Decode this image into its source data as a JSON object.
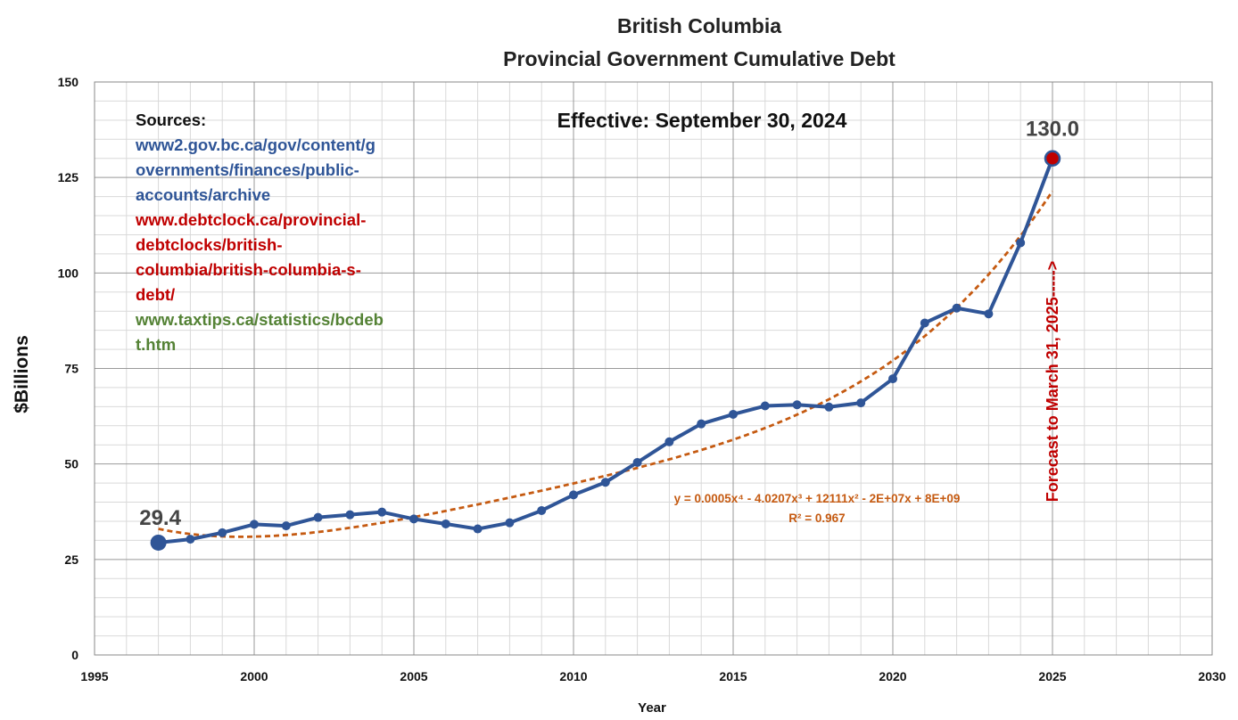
{
  "chart_data": {
    "type": "line",
    "title_line1": "British Columbia",
    "title_line2": "Provincial Government Cumulative Debt",
    "xlabel": "Year",
    "ylabel": "$Billions",
    "xlim": [
      1995,
      2030
    ],
    "ylim": [
      0,
      150
    ],
    "x_ticks": [
      "1995",
      "2000",
      "2005",
      "2010",
      "2015",
      "2020",
      "2025",
      "2030"
    ],
    "y_ticks": [
      "0",
      "25",
      "50",
      "75",
      "100",
      "125",
      "150"
    ],
    "grid": true,
    "series": [
      {
        "x": [
          1997,
          1998,
          1999,
          2000,
          2001,
          2002,
          2003,
          2004,
          2005,
          2006,
          2007,
          2008,
          2009,
          2010,
          2011,
          2012,
          2013,
          2014,
          2015,
          2016,
          2017,
          2018,
          2019,
          2020,
          2021,
          2022,
          2023,
          2024,
          2025
        ],
        "values": [
          29.4,
          30.3,
          32.0,
          34.2,
          33.8,
          36.0,
          36.7,
          37.4,
          35.6,
          34.3,
          33.0,
          34.6,
          37.8,
          41.9,
          45.2,
          50.4,
          55.8,
          60.5,
          63.0,
          65.2,
          65.5,
          64.9,
          66.0,
          72.3,
          86.9,
          90.8,
          89.3,
          107.9,
          130.0
        ],
        "color": "#2f5597"
      }
    ],
    "trendline": {
      "type": "polynomial-4",
      "color": "#c55a11",
      "equation": "y = 0.0005x⁴ - 4.0207x³ + 12111x² - 2E+07x + 8E+09",
      "r_squared": "R² = 0.967"
    },
    "data_labels": {
      "first": "29.4",
      "last": "130.0"
    },
    "highlight_color": "#c00000",
    "annotations": {
      "effective": "Effective: September 30, 2024",
      "forecast": "Forecast to March 31, 2025----->"
    },
    "sources": {
      "heading": "Sources:",
      "items": [
        {
          "lines": [
            "www2.gov.bc.ca/gov/content/g",
            "overnments/finances/public-",
            "accounts/archive"
          ],
          "color": "#2f5597"
        },
        {
          "lines": [
            "www.debtclock.ca/provincial-",
            "debtclocks/british-",
            "columbia/british-columbia-s-",
            "debt/"
          ],
          "color": "#c00000"
        },
        {
          "lines": [
            "www.taxtips.ca/statistics/bcdeb",
            "t.htm"
          ],
          "color": "#548235"
        }
      ]
    }
  }
}
